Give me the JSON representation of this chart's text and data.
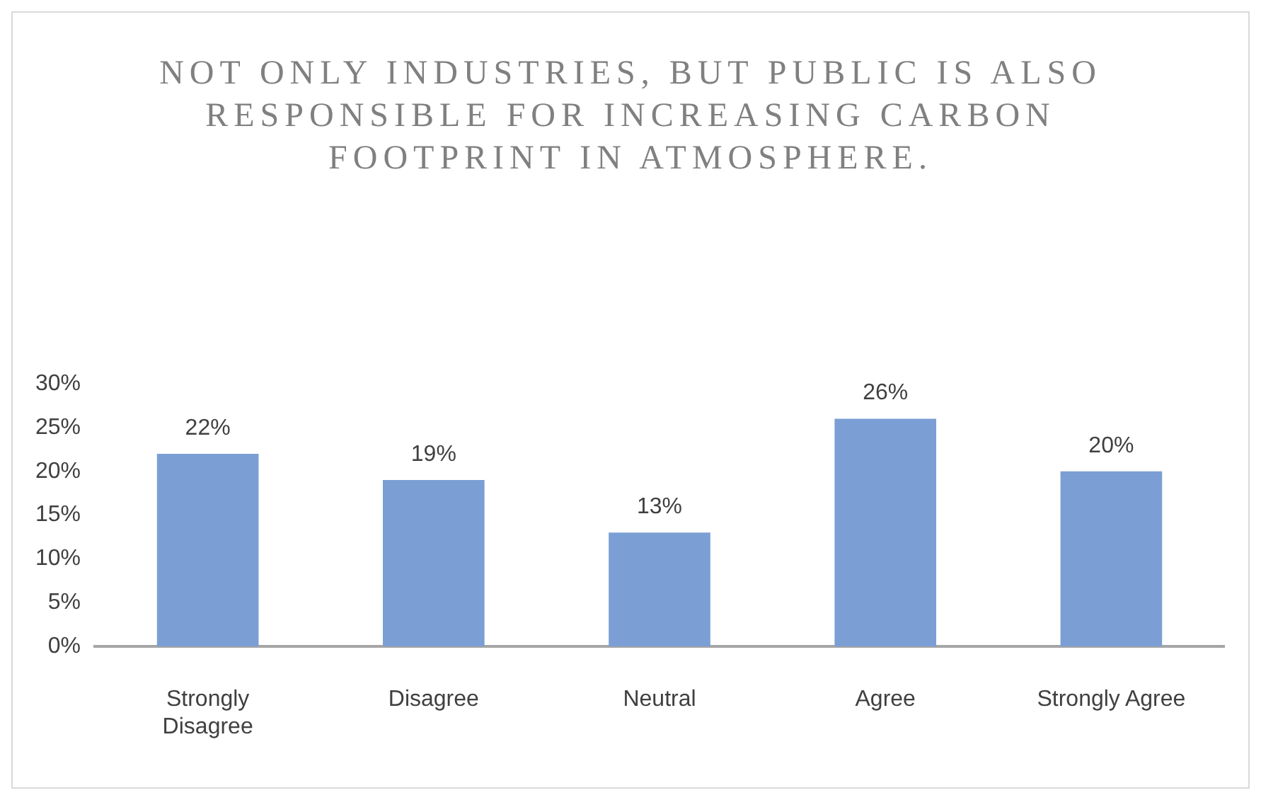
{
  "chart_data": {
    "type": "bar",
    "title": "NOT ONLY INDUSTRIES, BUT PUBLIC IS ALSO RESPONSIBLE FOR INCREASING CARBON FOOTPRINT IN ATMOSPHERE.",
    "categories": [
      "Strongly Disagree",
      "Disagree",
      "Neutral",
      "Agree",
      "Strongly Agree"
    ],
    "values": [
      22,
      19,
      13,
      26,
      20
    ],
    "value_labels": [
      "22%",
      "19%",
      "13%",
      "26%",
      "20%"
    ],
    "color": "#7b9fd4",
    "ylim": [
      0,
      30
    ],
    "yticks": [
      {
        "value": 0,
        "label": "0%"
      },
      {
        "value": 5,
        "label": "5%"
      },
      {
        "value": 10,
        "label": "10%"
      },
      {
        "value": 15,
        "label": "15%"
      },
      {
        "value": 20,
        "label": "20%"
      },
      {
        "value": 25,
        "label": "25%"
      },
      {
        "value": 30,
        "label": "30%"
      }
    ],
    "grid": false,
    "legend": false
  }
}
